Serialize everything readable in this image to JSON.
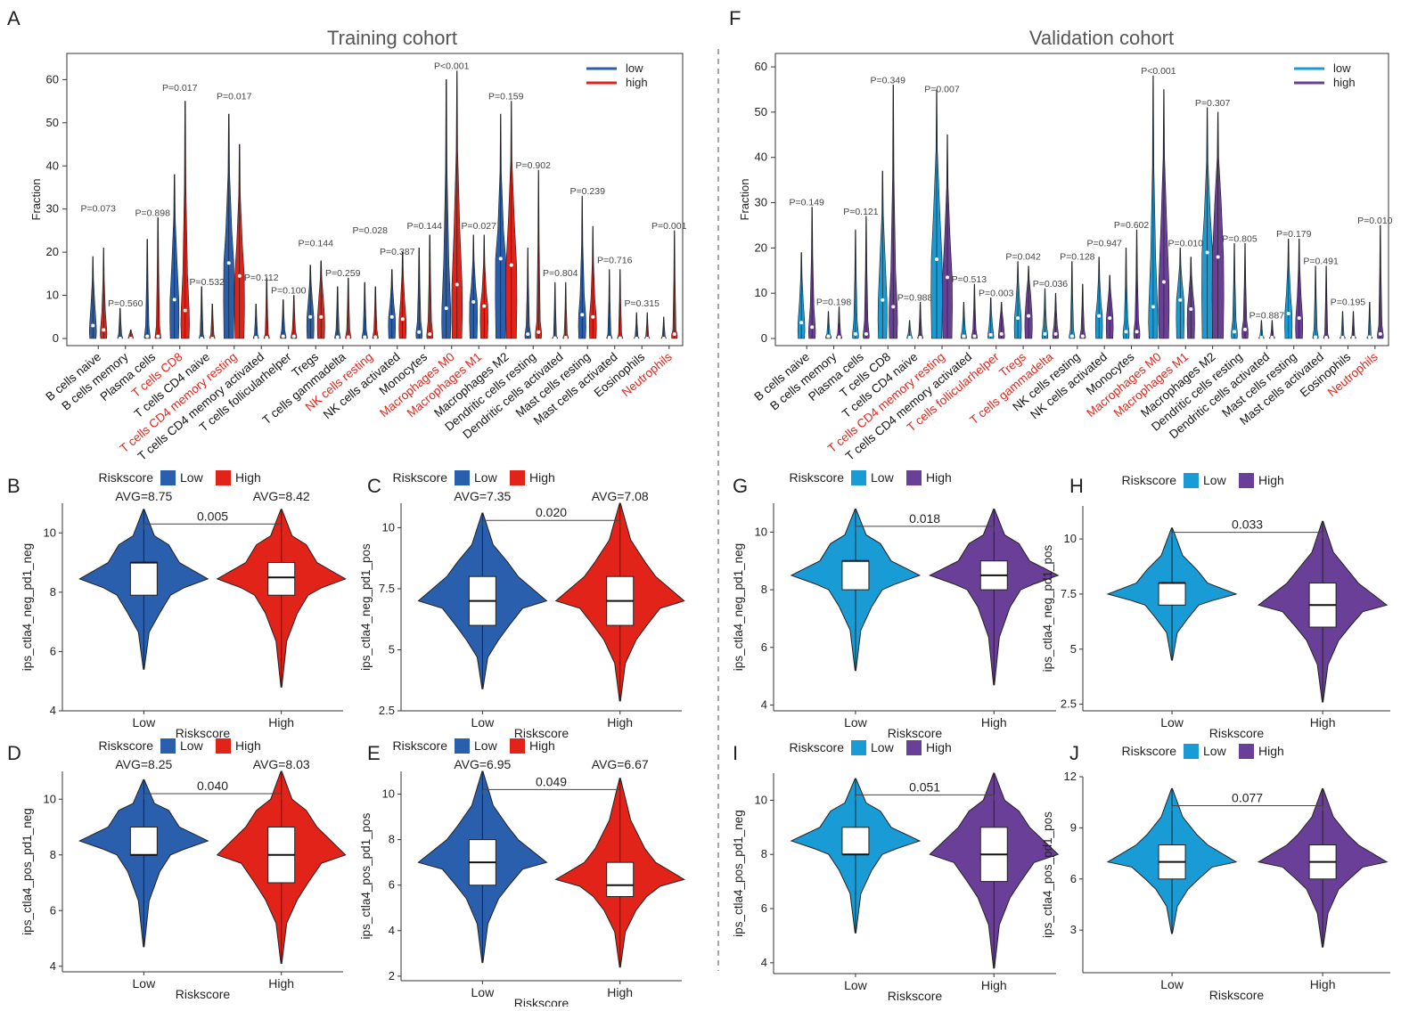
{
  "colors": {
    "train_low": "#2a5fad",
    "train_high": "#e2231a",
    "val_low": "#199bd6",
    "val_high": "#6a3f97",
    "highlight": "#e2231a",
    "text": "#222222"
  },
  "chart_data": [
    {
      "id": "A",
      "type": "violin",
      "title": "Training cohort",
      "panel_label": "A",
      "ylabel": "Fraction",
      "ylim": [
        0,
        64
      ],
      "yticks": [
        0,
        10,
        20,
        30,
        40,
        50,
        60
      ],
      "legend": [
        "low",
        "high"
      ],
      "palette": [
        "train_low",
        "train_high"
      ],
      "categories": [
        "B cells naive",
        "B cells memory",
        "Plasma cells",
        "T cells CD8",
        "T cells CD4 naive",
        "T cells CD4 memory resting",
        "T cells CD4 memory activated",
        "T cells follicularhelper",
        "Tregs",
        "T cells gammadelta",
        "NK cells resting",
        "NK cells activated",
        "Monocytes",
        "Macrophages M0",
        "Macrophages M1",
        "Macrophages M2",
        "Dendritic cells resting",
        "Dendritic cells activated",
        "Mast cells resting",
        "Mast cells activated",
        "Eosinophils",
        "Neutrophils"
      ],
      "highlighted": [
        false,
        false,
        false,
        true,
        false,
        true,
        false,
        false,
        false,
        false,
        true,
        false,
        false,
        true,
        true,
        false,
        false,
        false,
        false,
        false,
        false,
        true
      ],
      "pvalues": [
        "P=0.073",
        "P=0.560",
        "P=0.898",
        "P=0.017",
        "P=0.532",
        "P=0.017",
        "P=0.112",
        "P=0.100",
        "P=0.144",
        "P=0.259",
        "P=0.028",
        "P=0.387",
        "P=0.144",
        "P<0.001",
        "P=0.027",
        "P=0.159",
        "P=0.902",
        "P=0.804",
        "P=0.239",
        "P=0.716",
        "P=0.315",
        "P=0.001"
      ],
      "pvalue_y": [
        29,
        7,
        28,
        57,
        12,
        55,
        13,
        10,
        21,
        14,
        24,
        19,
        25,
        62,
        25,
        55,
        39,
        14,
        33,
        17,
        7,
        25
      ],
      "low_median": [
        3,
        0,
        0.5,
        9,
        0,
        17.5,
        0.2,
        0.5,
        5,
        0.3,
        0.3,
        5,
        1.5,
        7,
        8.5,
        18.5,
        1,
        0.1,
        5.5,
        0.2,
        0,
        0
      ],
      "high_median": [
        2,
        0,
        0.5,
        6.5,
        0,
        14.5,
        0.2,
        0.5,
        5,
        0.3,
        0.3,
        4.5,
        1,
        12.5,
        7.5,
        17,
        1.5,
        0.2,
        5,
        0.1,
        0,
        1
      ],
      "low_max": [
        19,
        7,
        23,
        38,
        12,
        52,
        8,
        9,
        17,
        12,
        13,
        16,
        21,
        60,
        24,
        52,
        21,
        13,
        33,
        16,
        6,
        5
      ],
      "high_max": [
        21,
        2,
        28,
        55,
        8,
        45,
        14,
        10,
        18,
        14,
        12,
        20,
        24,
        62,
        24,
        55,
        39,
        13,
        26,
        16,
        6,
        25
      ],
      "low_upper": [
        8,
        1,
        3,
        18,
        1,
        25,
        1,
        2,
        9,
        2,
        2,
        8,
        4,
        18,
        12,
        25,
        3,
        0.5,
        10,
        1,
        0.5,
        0.5
      ],
      "high_upper": [
        6,
        1,
        3,
        15,
        1,
        22,
        1,
        2,
        10,
        2,
        2,
        9,
        4,
        25,
        11,
        27,
        4,
        1,
        9,
        1,
        0.5,
        2
      ]
    },
    {
      "id": "F",
      "type": "violin",
      "title": "Validation cohort",
      "panel_label": "F",
      "ylabel": "Fraction",
      "ylim": [
        0,
        61
      ],
      "yticks": [
        0,
        10,
        20,
        30,
        40,
        50,
        60
      ],
      "legend": [
        "low",
        "high"
      ],
      "palette": [
        "val_low",
        "val_high"
      ],
      "categories": [
        "B cells naive",
        "B cells memory",
        "Plasma cells",
        "T cells CD8",
        "T cells CD4 naive",
        "T cells CD4 memory resting",
        "T cells CD4 memory activated",
        "T cells follicularhelper",
        "Tregs",
        "T cells gammadelta",
        "NK cells resting",
        "NK cells activated",
        "Monocytes",
        "Macrophages M0",
        "Macrophages M1",
        "Macrophages M2",
        "Dendritic cells resting",
        "Dendritic cells activated",
        "Mast cells resting",
        "Mast cells activated",
        "Eosinophils",
        "Neutrophils"
      ],
      "highlighted": [
        false,
        false,
        false,
        false,
        false,
        true,
        false,
        true,
        true,
        true,
        false,
        false,
        false,
        true,
        true,
        false,
        false,
        false,
        false,
        false,
        false,
        true
      ],
      "pvalues": [
        "P=0.149",
        "P=0.198",
        "P=0.121",
        "P=0.349",
        "P=0.988",
        "P=0.007",
        "P=0.513",
        "P=0.003",
        "P=0.042",
        "P=0.036",
        "P=0.128",
        "P=0.947",
        "P=0.602",
        "P<0.001",
        "P=0.010",
        "P=0.307",
        "P=0.805",
        "P=0.887",
        "P=0.179",
        "P=0.491",
        "P=0.195",
        "P=0.010"
      ],
      "pvalue_y": [
        29,
        7,
        27,
        56,
        8,
        54,
        12,
        9,
        17,
        11,
        17,
        20,
        24,
        58,
        20,
        51,
        21,
        4,
        22,
        16,
        7,
        25
      ],
      "low_median": [
        3.5,
        0.5,
        1,
        8.5,
        0.2,
        17.5,
        0.5,
        0.8,
        4.5,
        1,
        0.5,
        5,
        1.5,
        7,
        8.5,
        19,
        1.5,
        0.2,
        5.5,
        0.3,
        0.2,
        0.3
      ],
      "high_median": [
        2.5,
        0.3,
        1,
        7,
        0.2,
        13.5,
        0.5,
        1,
        5,
        1,
        0.5,
        4.5,
        1.5,
        12.5,
        6.5,
        18,
        2,
        0.2,
        4.5,
        0.2,
        0.2,
        1
      ],
      "low_max": [
        19,
        6,
        24,
        37,
        4,
        55,
        8,
        9,
        17,
        11,
        17,
        18,
        20,
        58,
        20,
        51,
        21,
        4,
        22,
        16,
        6,
        8
      ],
      "high_max": [
        29,
        7,
        27,
        56,
        8,
        45,
        12,
        8,
        16,
        10,
        12,
        14,
        24,
        55,
        18,
        50,
        21,
        4,
        22,
        16,
        6,
        25
      ],
      "low_upper": [
        8,
        1,
        4,
        18,
        1,
        28,
        2,
        3,
        8,
        3,
        2,
        8,
        4,
        18,
        12,
        27,
        4,
        0.5,
        10,
        2,
        0.5,
        0.5
      ],
      "high_upper": [
        7,
        1,
        4,
        15,
        1,
        22,
        2,
        4,
        10,
        3,
        2,
        8,
        4,
        25,
        10,
        30,
        4,
        0.5,
        9,
        1,
        0.5,
        3
      ]
    },
    {
      "id": "B",
      "type": "violin",
      "panel_label": "B",
      "ylabel": "ips_ctla4_neg_pd1_neg",
      "xlabel": "Riskscore",
      "legend_title": "Riskscore",
      "legend": [
        "Low",
        "High"
      ],
      "categories": [
        "Low",
        "High"
      ],
      "palette": [
        "train_low",
        "train_high"
      ],
      "ylim": [
        4,
        11
      ],
      "yticks": [
        4,
        6,
        8,
        10
      ],
      "avg": [
        "AVG=8.75",
        "AVG=8.42"
      ],
      "pvalue": "0.005",
      "bracket_y": 10.3,
      "medians": [
        9,
        8.5
      ],
      "q1": [
        7.9,
        7.9
      ],
      "q3": [
        9,
        9
      ],
      "mins": [
        5.4,
        4.8
      ],
      "maxs": [
        10.8,
        10.8
      ]
    },
    {
      "id": "C",
      "type": "violin",
      "panel_label": "C",
      "ylabel": "ips_ctla4_neg_pd1_pos",
      "xlabel": "Riskscore",
      "legend_title": "Riskscore",
      "legend": [
        "Low",
        "High"
      ],
      "categories": [
        "Low",
        "High"
      ],
      "palette": [
        "train_low",
        "train_high"
      ],
      "ylim": [
        2.5,
        11
      ],
      "yticks": [
        2.5,
        5.0,
        7.5,
        10.0
      ],
      "avg": [
        "AVG=7.35",
        "AVG=7.08"
      ],
      "pvalue": "0.020",
      "bracket_y": 10.3,
      "medians": [
        7,
        7
      ],
      "q1": [
        6,
        6
      ],
      "q3": [
        8,
        8
      ],
      "mins": [
        3.4,
        2.9
      ],
      "maxs": [
        10.6,
        11
      ]
    },
    {
      "id": "D",
      "type": "violin",
      "panel_label": "D",
      "ylabel": "ips_ctla4_pos_pd1_neg",
      "xlabel": "Riskscore",
      "legend_title": "Riskscore",
      "legend": [
        "Low",
        "High"
      ],
      "categories": [
        "Low",
        "High"
      ],
      "palette": [
        "train_low",
        "train_high"
      ],
      "ylim": [
        3.8,
        11
      ],
      "yticks": [
        4,
        6,
        8,
        10
      ],
      "avg": [
        "AVG=8.25",
        "AVG=8.03"
      ],
      "pvalue": "0.040",
      "bracket_y": 10.2,
      "medians": [
        8,
        8
      ],
      "q1": [
        8,
        7
      ],
      "q3": [
        9,
        9
      ],
      "mins": [
        4.7,
        4.1
      ],
      "maxs": [
        10.7,
        11
      ]
    },
    {
      "id": "E",
      "type": "violin",
      "panel_label": "E",
      "ylabel": "ips_ctla4_pos_pd1_pos",
      "xlabel": "Riskscore",
      "legend_title": "Riskscore",
      "legend": [
        "Low",
        "High"
      ],
      "categories": [
        "Low",
        "High"
      ],
      "palette": [
        "train_low",
        "train_high"
      ],
      "ylim": [
        1.8,
        11
      ],
      "yticks": [
        2,
        4,
        6,
        8,
        10
      ],
      "avg": [
        "AVG=6.95",
        "AVG=6.67"
      ],
      "pvalue": "0.049",
      "bracket_y": 10.2,
      "medians": [
        7,
        6
      ],
      "q1": [
        6,
        5.5
      ],
      "q3": [
        8,
        7
      ],
      "mins": [
        2.6,
        2.4
      ],
      "maxs": [
        11,
        10.7
      ]
    },
    {
      "id": "G",
      "type": "violin",
      "panel_label": "G",
      "ylabel": "ips_ctla4_neg_pd1_neg",
      "xlabel": "Riskscore",
      "legend_title": "Riskscore",
      "legend": [
        "Low",
        "High"
      ],
      "categories": [
        "Low",
        "High"
      ],
      "palette": [
        "val_low",
        "val_high"
      ],
      "ylim": [
        3.8,
        11
      ],
      "yticks": [
        4,
        6,
        8,
        10
      ],
      "avg": [],
      "pvalue": "0.018",
      "bracket_y": 10.2,
      "medians": [
        9,
        8.5
      ],
      "q1": [
        8,
        8
      ],
      "q3": [
        9,
        9
      ],
      "mins": [
        5.2,
        4.7
      ],
      "maxs": [
        10.8,
        10.8
      ]
    },
    {
      "id": "H",
      "type": "violin",
      "panel_label": "H",
      "ylabel": "ips_ctla4_neg_pd1_pos",
      "xlabel": "Riskscore",
      "legend_title": "Riskscore",
      "legend": [
        "Low",
        "High"
      ],
      "categories": [
        "Low",
        "High"
      ],
      "palette": [
        "val_low",
        "val_high"
      ],
      "ylim": [
        2.2,
        11.5
      ],
      "yticks": [
        2.5,
        5.0,
        7.5,
        10.0
      ],
      "avg": [],
      "pvalue": "0.033",
      "bracket_y": 10.3,
      "medians": [
        8,
        7
      ],
      "q1": [
        7,
        6
      ],
      "q3": [
        8,
        8
      ],
      "mins": [
        4.5,
        2.6
      ],
      "maxs": [
        10.5,
        10.8
      ]
    },
    {
      "id": "I",
      "type": "violin",
      "panel_label": "I",
      "ylabel": "ips_ctla4_pos_pd1_neg",
      "xlabel": "Riskscore",
      "legend_title": "Riskscore",
      "legend": [
        "Low",
        "High"
      ],
      "categories": [
        "Low",
        "High"
      ],
      "palette": [
        "val_low",
        "val_high"
      ],
      "ylim": [
        3.6,
        11
      ],
      "yticks": [
        4,
        6,
        8,
        10
      ],
      "avg": [],
      "pvalue": "0.051",
      "bracket_y": 10.2,
      "medians": [
        8,
        8
      ],
      "q1": [
        8,
        7
      ],
      "q3": [
        9,
        9
      ],
      "mins": [
        5.1,
        3.8
      ],
      "maxs": [
        10.8,
        11
      ]
    },
    {
      "id": "J",
      "type": "violin",
      "panel_label": "J",
      "ylabel": "ips_ctla4_pos_pd1_pos",
      "xlabel": "Riskscore",
      "legend_title": "Riskscore",
      "legend": [
        "Low",
        "High"
      ],
      "categories": [
        "Low",
        "High"
      ],
      "palette": [
        "val_low",
        "val_high"
      ],
      "ylim": [
        0.5,
        12
      ],
      "yticks": [
        3,
        6,
        9,
        12
      ],
      "avg": [],
      "pvalue": "0.077",
      "bracket_y": 10.3,
      "medians": [
        7,
        7
      ],
      "q1": [
        6,
        6
      ],
      "q3": [
        8,
        8
      ],
      "mins": [
        2.8,
        2
      ],
      "maxs": [
        11.3,
        11.3
      ]
    }
  ]
}
